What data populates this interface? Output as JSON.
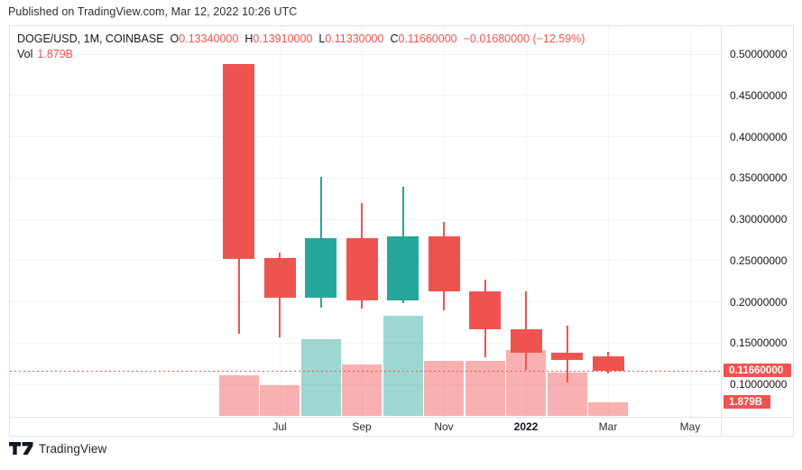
{
  "published_line": "Published on TradingView.com, Mar 12, 2022 10:26 UTC",
  "legend": {
    "symbol": "DOGE/USD, 1M, COINBASE",
    "ohlc": [
      {
        "label": "O",
        "value": "0.13340000"
      },
      {
        "label": "H",
        "value": "0.13910000"
      },
      {
        "label": "L",
        "value": "0.11330000"
      },
      {
        "label": "C",
        "value": "0.11660000"
      }
    ],
    "change": "−0.01680000 (−12.59%)",
    "vol_label": "Vol",
    "vol_value": "1.879B"
  },
  "price_badge": "0.11660000",
  "volume_badge": "1.879B",
  "footer": {
    "brand": "TradingView"
  },
  "colors": {
    "up": "#26a69a",
    "down": "#ef5350",
    "vol_up": "rgba(38,166,154,0.45)",
    "vol_down": "rgba(239,83,80,0.45)",
    "grid": "#f0f3fa",
    "border": "#e0e3eb",
    "text": "#131722",
    "accent_red": "#ef5350",
    "badge_text": "#ffffff"
  },
  "chart_data": {
    "type": "candlestick_with_volume",
    "symbol": "DOGE/USD",
    "interval": "1M",
    "exchange": "COINBASE",
    "y_axis": {
      "min": 0.1,
      "max": 0.5,
      "ticks": [
        {
          "value": 0.5,
          "label": "0.50000000"
        },
        {
          "value": 0.45,
          "label": "0.45000000"
        },
        {
          "value": 0.4,
          "label": "0.40000000"
        },
        {
          "value": 0.35,
          "label": "0.35000000"
        },
        {
          "value": 0.3,
          "label": "0.30000000"
        },
        {
          "value": 0.25,
          "label": "0.25000000"
        },
        {
          "value": 0.2,
          "label": "0.20000000"
        },
        {
          "value": 0.15,
          "label": "0.15000000"
        },
        {
          "value": 0.1,
          "label": "0.10000000"
        }
      ]
    },
    "x_axis": {
      "labels": [
        {
          "label": "Jul",
          "slot": 1,
          "bold": false
        },
        {
          "label": "Sep",
          "slot": 3,
          "bold": false
        },
        {
          "label": "Nov",
          "slot": 5,
          "bold": false
        },
        {
          "label": "2022",
          "slot": 7,
          "bold": true
        },
        {
          "label": "Mar",
          "slot": 9,
          "bold": false
        },
        {
          "label": "May",
          "slot": 11,
          "bold": false
        }
      ],
      "grid_on": true
    },
    "last_price": 0.1166,
    "last_volume_billions": 1.879,
    "candles": [
      {
        "month": "Jun 2021",
        "slot": 0,
        "o": 0.488,
        "h": 0.488,
        "l": 0.161,
        "c": 0.252,
        "volume_b": 5.6
      },
      {
        "month": "Jul 2021",
        "slot": 1,
        "o": 0.253,
        "h": 0.26,
        "l": 0.157,
        "c": 0.205,
        "volume_b": 4.3
      },
      {
        "month": "Aug 2021",
        "slot": 2,
        "o": 0.205,
        "h": 0.351,
        "l": 0.193,
        "c": 0.277,
        "volume_b": 10.6
      },
      {
        "month": "Sep 2021",
        "slot": 3,
        "o": 0.277,
        "h": 0.32,
        "l": 0.192,
        "c": 0.202,
        "volume_b": 7.1
      },
      {
        "month": "Oct 2021",
        "slot": 4,
        "o": 0.202,
        "h": 0.339,
        "l": 0.198,
        "c": 0.279,
        "volume_b": 13.9
      },
      {
        "month": "Nov 2021",
        "slot": 5,
        "o": 0.279,
        "h": 0.297,
        "l": 0.19,
        "c": 0.213,
        "volume_b": 7.6
      },
      {
        "month": "Dec 2021",
        "slot": 6,
        "o": 0.213,
        "h": 0.227,
        "l": 0.133,
        "c": 0.167,
        "volume_b": 7.6
      },
      {
        "month": "Jan 2022",
        "slot": 7,
        "o": 0.167,
        "h": 0.213,
        "l": 0.117,
        "c": 0.138,
        "volume_b": 9.1
      },
      {
        "month": "Feb 2022",
        "slot": 8,
        "o": 0.138,
        "h": 0.171,
        "l": 0.102,
        "c": 0.129,
        "volume_b": 6.0
      },
      {
        "month": "Mar 2022",
        "slot": 9,
        "o": 0.1334,
        "h": 0.1391,
        "l": 0.1133,
        "c": 0.1166,
        "volume_b": 1.879
      }
    ]
  }
}
